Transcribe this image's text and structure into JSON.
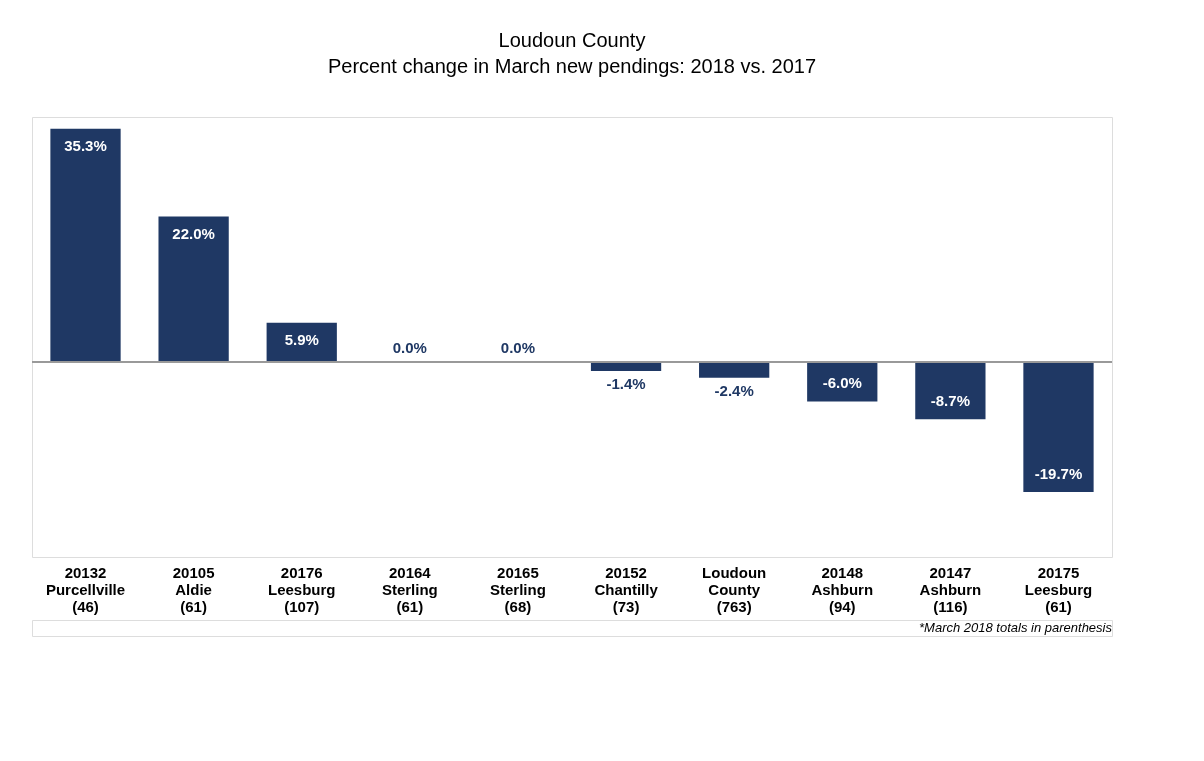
{
  "chart_data": {
    "type": "bar",
    "title": "Loudoun County",
    "subtitle": "Percent change in March new pendings: 2018 vs. 2017",
    "categories": [
      "20132\nPurcellville\n(46)",
      "20105\nAldie\n(61)",
      "20176\nLeesburg\n(107)",
      "20164\nSterling\n(61)",
      "20165\nSterling\n(68)",
      "20152\nChantilly\n(73)",
      "Loudoun\nCounty\n(763)",
      "20148\nAshburn\n(94)",
      "20147\nAshburn\n(116)",
      "20175\nLeesburg\n(61)"
    ],
    "values": [
      35.3,
      22.0,
      5.9,
      0.0,
      0.0,
      -1.4,
      -2.4,
      -6.0,
      -8.7,
      -19.7
    ],
    "value_labels": [
      "35.3%",
      "22.0%",
      "5.9%",
      "0.0%",
      "0.0%",
      "-1.4%",
      "-2.4%",
      "-6.0%",
      "-8.7%",
      "-19.7%"
    ],
    "color": "#1f3864",
    "annotations": [
      "*March 2018 totals in parenthesis"
    ],
    "grid": false,
    "tick_labels": "x"
  }
}
